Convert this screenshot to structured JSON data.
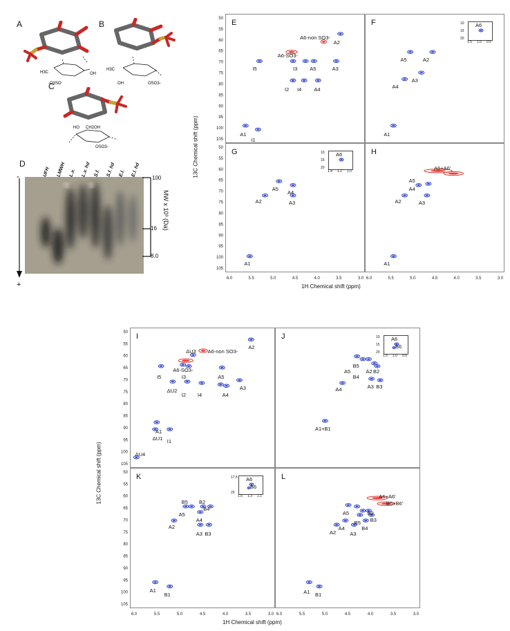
{
  "figure": {
    "panel_letters": [
      "A",
      "B",
      "C",
      "D"
    ],
    "structures": {
      "a_labels": [
        "H3C",
        "OH",
        "-O3SO"
      ],
      "b_labels": [
        "H3C",
        "OH",
        "OSO3-"
      ],
      "c_labels": [
        "HO",
        "CH2OH",
        "OSO3-"
      ]
    },
    "gel": {
      "lanes": [
        "UFH",
        "LMWH",
        "L.v.",
        "L.v. hd",
        "S.f.",
        "S.f. hd",
        "E.l.",
        "E.l. hd"
      ],
      "mw_label": "MW x 10³ (Da)",
      "mw_ticks": [
        "100",
        "16",
        "8.0"
      ],
      "minus": "-",
      "plus": "+"
    }
  },
  "nmr_top": {
    "y_axis_title": "13C Chemical shift (ppm)",
    "x_axis_title": "1H Chemical shift (ppm)",
    "y_ticks": [
      "50",
      "55",
      "60",
      "65",
      "70",
      "75",
      "80",
      "85",
      "90",
      "95",
      "100",
      "105"
    ],
    "x_ticks": [
      "6.0",
      "5.5",
      "5.0",
      "4.5",
      "4.0",
      "3.5",
      "3.0"
    ],
    "panels": [
      {
        "id": "E",
        "annotations": [
          "A6-non SO3-",
          "A2",
          "A6-SO3-",
          "I5",
          "I3",
          "A5",
          "A3",
          "I2",
          "I4",
          "A4",
          "A1",
          "I1"
        ]
      },
      {
        "id": "F",
        "annotations": [
          "A5",
          "A2",
          "A4",
          "A3",
          "A1"
        ],
        "inset": {
          "label": "A6",
          "y_ticks": [
            "10",
            "15",
            "20"
          ],
          "x_ticks": [
            "1.5",
            "1.0",
            "0.5"
          ]
        }
      },
      {
        "id": "G",
        "annotations": [
          "A5",
          "A4",
          "A2",
          "A3",
          "A1"
        ],
        "inset": {
          "label": "A6",
          "y_ticks": [
            "10",
            "15",
            "20"
          ],
          "x_ticks": [
            "1.4",
            "1.2",
            "1.0"
          ]
        }
      },
      {
        "id": "H",
        "annotations": [
          "A6+A6'",
          "A5",
          "A4",
          "A2",
          "A3",
          "A1"
        ]
      }
    ]
  },
  "nmr_bottom": {
    "y_axis_title": "13C Chemical shift (ppm)",
    "x_axis_title": "1H Chemical shift (ppm)",
    "y_ticks": [
      "50",
      "55",
      "60",
      "65",
      "70",
      "75",
      "80",
      "85",
      "90",
      "95",
      "100",
      "105"
    ],
    "x_ticks": [
      "6.0",
      "5.5",
      "5.0",
      "4.5",
      "4.0",
      "3.5",
      "3.0"
    ],
    "panels": [
      {
        "id": "I",
        "annotations": [
          "ΔU3",
          "A6-non SO3-",
          "A2",
          "A6-SO3-",
          "I5",
          "I3",
          "A5",
          "ΔU2",
          "I2",
          "I4",
          "A4",
          "A3",
          "A1",
          "ΔU1",
          "I1",
          "ΔU4"
        ]
      },
      {
        "id": "J",
        "annotations": [
          "B5",
          "A5",
          "B4",
          "A2",
          "B2",
          "A3",
          "B3",
          "A4",
          "A1+B1"
        ],
        "inset": {
          "labels": [
            "A6",
            "B6"
          ],
          "y_ticks": [
            "10",
            "15",
            "20"
          ],
          "x_ticks": [
            "1.5",
            "1.0",
            "0.5"
          ]
        }
      },
      {
        "id": "K",
        "annotations": [
          "B5",
          "B2",
          "A5",
          "B4",
          "A4",
          "A2",
          "A3",
          "B3",
          "A1",
          "B1"
        ],
        "inset": {
          "labels": [
            "A6",
            "B6"
          ],
          "y_ticks": [
            "17.5",
            "20"
          ],
          "x_ticks": [
            "1.5",
            "1.3",
            "1.1"
          ]
        }
      },
      {
        "id": "L",
        "annotations": [
          "A6+A6'",
          "B6+B6'",
          "A5",
          "B2",
          "B3",
          "B5",
          "B4",
          "A4",
          "A2",
          "A3",
          "A1",
          "B1"
        ]
      }
    ]
  },
  "colors": {
    "blue": "#2b3fc9",
    "red": "#e0302a",
    "dark": "#1a1a1a"
  }
}
